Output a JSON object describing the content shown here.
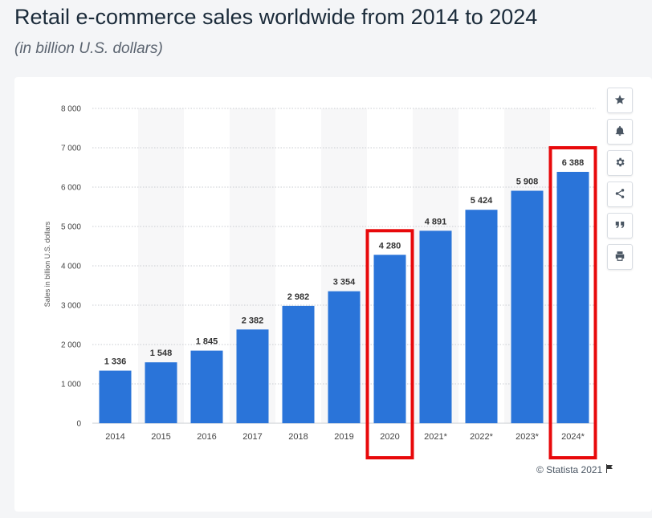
{
  "header": {
    "title": "Retail e-commerce sales worldwide from 2014 to 2024",
    "subtitle": "(in billion U.S. dollars)"
  },
  "footer": {
    "copyright": "© Statista 2021"
  },
  "toolbar": {
    "icons": [
      "star-icon",
      "bell-icon",
      "gear-icon",
      "share-icon",
      "quote-icon",
      "print-icon"
    ]
  },
  "colors": {
    "bar": "#2a74d9",
    "highlight": "#e8090b",
    "grid": "#c9cdd2",
    "band": "#f7f7f8"
  },
  "chart_data": {
    "type": "bar",
    "title": "Retail e-commerce sales worldwide from 2014 to 2024",
    "subtitle": "(in billion U.S. dollars)",
    "xlabel": "",
    "ylabel": "Sales in billion U.S. dollars",
    "ylim": [
      0,
      8000
    ],
    "yticks": [
      0,
      1000,
      2000,
      3000,
      4000,
      5000,
      6000,
      7000,
      8000
    ],
    "ytick_labels": [
      "0",
      "1 000",
      "2 000",
      "3 000",
      "4 000",
      "5 000",
      "6 000",
      "7 000",
      "8 000"
    ],
    "categories": [
      "2014",
      "2015",
      "2016",
      "2017",
      "2018",
      "2019",
      "2020",
      "2021*",
      "2022*",
      "2023*",
      "2024*"
    ],
    "values": [
      1336,
      1548,
      1845,
      2382,
      2982,
      3354,
      4280,
      4891,
      5424,
      5908,
      6388
    ],
    "value_labels": [
      "1 336",
      "1 548",
      "1 845",
      "2 382",
      "2 982",
      "3 354",
      "4 280",
      "4 891",
      "5 424",
      "5 908",
      "6 388"
    ],
    "grid": true,
    "highlighted_categories": [
      "2020",
      "2024*"
    ]
  }
}
